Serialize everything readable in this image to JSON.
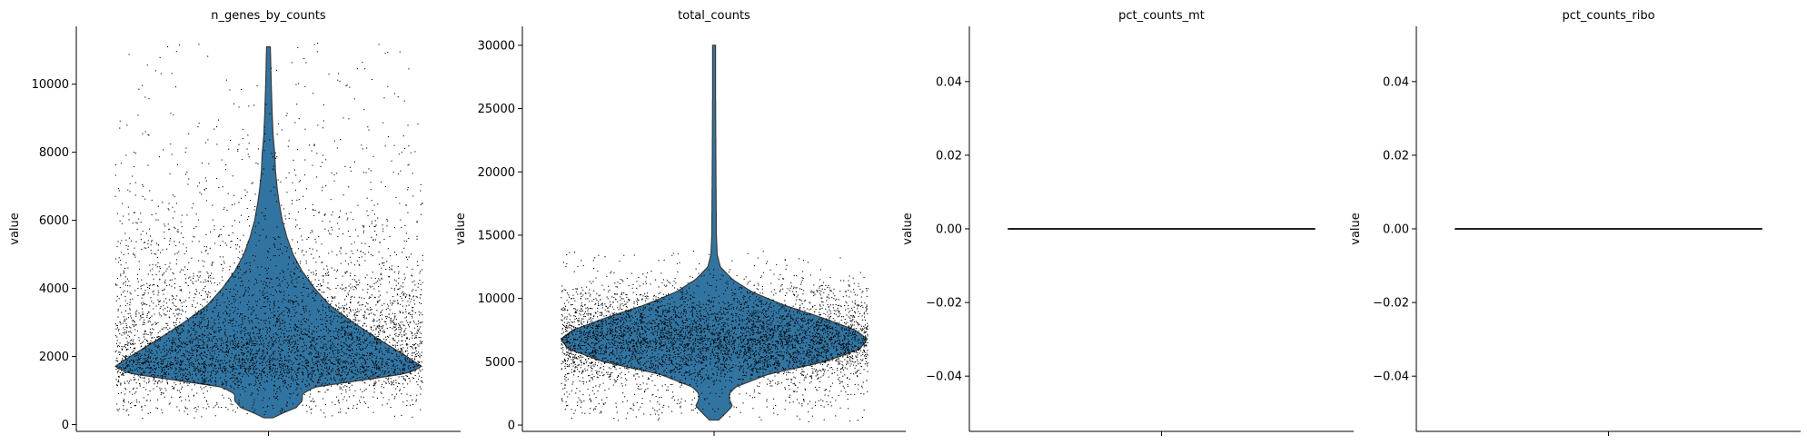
{
  "chart_data": [
    {
      "type": "violin",
      "title": "n_genes_by_counts",
      "xlabel": "",
      "ylabel": "value",
      "ylim": [
        -200,
        11700
      ],
      "yticks": [
        0,
        2000,
        4000,
        6000,
        8000,
        10000
      ],
      "ytick_labels": [
        "0",
        "2000",
        "4000",
        "6000",
        "8000",
        "10000"
      ],
      "grid": false,
      "violin_color": "#3274a1",
      "point_color": "#000000",
      "distribution": {
        "min": 200,
        "max": 11100,
        "profile": [
          [
            200,
            0.03
          ],
          [
            350,
            0.1
          ],
          [
            500,
            0.18
          ],
          [
            700,
            0.22
          ],
          [
            900,
            0.22
          ],
          [
            1100,
            0.3
          ],
          [
            1300,
            0.6
          ],
          [
            1500,
            0.9
          ],
          [
            1700,
            1.0
          ],
          [
            2000,
            0.9
          ],
          [
            2500,
            0.72
          ],
          [
            3000,
            0.55
          ],
          [
            3500,
            0.4
          ],
          [
            4000,
            0.3
          ],
          [
            4500,
            0.22
          ],
          [
            5000,
            0.16
          ],
          [
            5500,
            0.12
          ],
          [
            6000,
            0.09
          ],
          [
            6500,
            0.07
          ],
          [
            7000,
            0.055
          ],
          [
            7500,
            0.045
          ],
          [
            8000,
            0.04
          ],
          [
            8500,
            0.03
          ],
          [
            9000,
            0.025
          ],
          [
            10000,
            0.018
          ],
          [
            11100,
            0.012
          ]
        ]
      },
      "points_range": [
        200,
        11200
      ]
    },
    {
      "type": "violin",
      "title": "total_counts",
      "xlabel": "",
      "ylabel": "value",
      "ylim": [
        -500,
        31500
      ],
      "yticks": [
        0,
        5000,
        10000,
        15000,
        20000,
        25000,
        30000
      ],
      "ytick_labels": [
        "0",
        "5000",
        "10000",
        "15000",
        "20000",
        "25000",
        "30000"
      ],
      "grid": false,
      "violin_color": "#3274a1",
      "point_color": "#000000",
      "distribution": {
        "min": 400,
        "max": 30000,
        "profile": [
          [
            400,
            0.03
          ],
          [
            1000,
            0.08
          ],
          [
            1500,
            0.12
          ],
          [
            2000,
            0.1
          ],
          [
            2500,
            0.1
          ],
          [
            3000,
            0.14
          ],
          [
            4000,
            0.35
          ],
          [
            5000,
            0.72
          ],
          [
            6000,
            0.95
          ],
          [
            6800,
            1.0
          ],
          [
            7500,
            0.92
          ],
          [
            8500,
            0.7
          ],
          [
            9500,
            0.45
          ],
          [
            10500,
            0.25
          ],
          [
            11500,
            0.12
          ],
          [
            12500,
            0.04
          ],
          [
            13500,
            0.02
          ],
          [
            15000,
            0.015
          ],
          [
            20000,
            0.012
          ],
          [
            25000,
            0.01
          ],
          [
            30000,
            0.008
          ]
        ]
      },
      "points_range": [
        300,
        14000
      ]
    },
    {
      "type": "violin",
      "title": "pct_counts_mt",
      "xlabel": "",
      "ylabel": "value",
      "ylim": [
        -0.055,
        0.055
      ],
      "yticks": [
        -0.04,
        -0.02,
        0.0,
        0.02,
        0.04
      ],
      "ytick_labels": [
        "−0.04",
        "−0.02",
        "0.00",
        "0.02",
        "0.04"
      ],
      "grid": false,
      "constant_value": 0.0
    },
    {
      "type": "violin",
      "title": "pct_counts_ribo",
      "xlabel": "",
      "ylabel": "value",
      "ylim": [
        -0.055,
        0.055
      ],
      "yticks": [
        -0.04,
        -0.02,
        0.0,
        0.02,
        0.04
      ],
      "ytick_labels": [
        "−0.04",
        "−0.02",
        "0.00",
        "0.02",
        "0.04"
      ],
      "grid": false,
      "constant_value": 0.0
    }
  ]
}
